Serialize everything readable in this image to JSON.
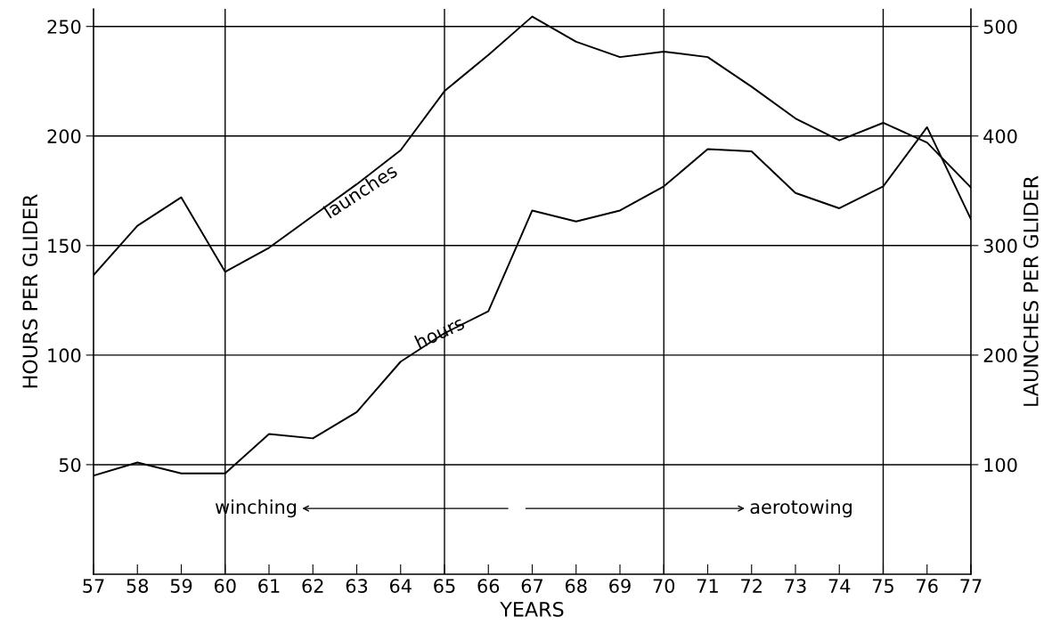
{
  "chart_data": {
    "type": "line",
    "xlabel": "YEARS",
    "ylabel": "HOURS PER GLIDER",
    "y2label": "LAUNCHES PER GLIDER",
    "x": [
      57,
      58,
      59,
      60,
      61,
      62,
      63,
      64,
      65,
      66,
      67,
      68,
      69,
      70,
      71,
      72,
      73,
      74,
      75,
      76,
      77
    ],
    "series": [
      {
        "name": "launches",
        "color": "#000000",
        "axis": "y2",
        "values": [
          273,
          318,
          344,
          276,
          298,
          327,
          356,
          387,
          441,
          474,
          509,
          486,
          472,
          477,
          472,
          445,
          416,
          396,
          412,
          394,
          353
        ]
      },
      {
        "name": "hours",
        "color": "#000000",
        "values": [
          45,
          51,
          46,
          46,
          64,
          62,
          74,
          97,
          110,
          120,
          166,
          161,
          166,
          177,
          194,
          193,
          174,
          167,
          177,
          204,
          162
        ]
      }
    ],
    "xlim": [
      57,
      77
    ],
    "xticks": [
      57,
      58,
      59,
      60,
      61,
      62,
      63,
      64,
      65,
      66,
      67,
      68,
      69,
      70,
      71,
      72,
      73,
      74,
      75,
      76,
      77
    ],
    "ylim": [
      0,
      258
    ],
    "yticks": [
      50,
      100,
      150,
      200,
      250
    ],
    "y2lim": [
      0,
      516
    ],
    "y2ticks": [
      100,
      200,
      300,
      400,
      500
    ],
    "grid": "y",
    "marker": "none",
    "line_style": "solid",
    "ref_lines": [
      {
        "axis": "x",
        "value": 60,
        "color": "#000000"
      },
      {
        "axis": "x",
        "value": 65,
        "color": "#000000"
      },
      {
        "axis": "x",
        "value": 70,
        "color": "#000000"
      },
      {
        "axis": "x",
        "value": 75,
        "color": "#000000"
      }
    ],
    "annotations": [
      "winching",
      "aerotowing"
    ]
  }
}
